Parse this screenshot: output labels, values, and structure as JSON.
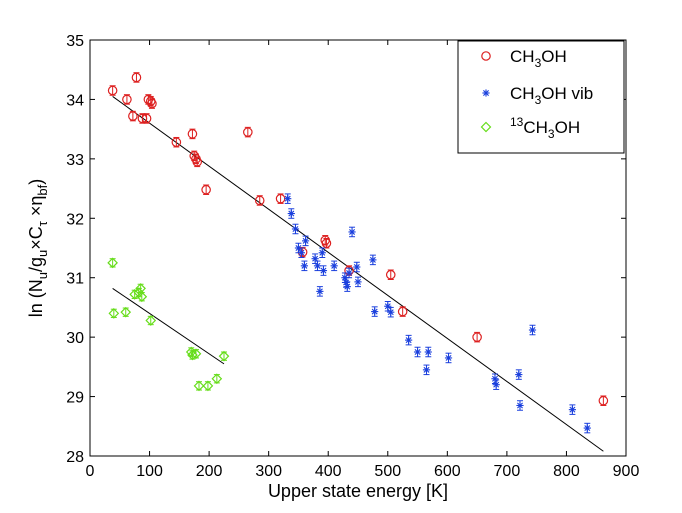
{
  "chart_data": {
    "type": "scatter",
    "title": "",
    "xlabel": "Upper state energy [K]",
    "ylabel": "ln (N_u/g_u×C_τ ×η_bf)",
    "xlim": [
      0,
      900
    ],
    "ylim": [
      28,
      35
    ],
    "xticks": [
      0,
      100,
      200,
      300,
      400,
      500,
      600,
      700,
      800,
      900
    ],
    "yticks": [
      28,
      29,
      30,
      31,
      32,
      33,
      34,
      35
    ],
    "grid": false,
    "legend_position": "top-right",
    "series": [
      {
        "name": "CH3OH",
        "legend": {
          "main": "CH",
          "sub": "3",
          "rest": "OH",
          "sup": ""
        },
        "marker": "circle",
        "color": "#dd2020",
        "error": 0.08,
        "points": [
          [
            38,
            34.15
          ],
          [
            62,
            34.0
          ],
          [
            72,
            33.72
          ],
          [
            78,
            34.37
          ],
          [
            88,
            33.68
          ],
          [
            95,
            33.68
          ],
          [
            98,
            34.0
          ],
          [
            102,
            33.97
          ],
          [
            104,
            33.93
          ],
          [
            145,
            33.28
          ],
          [
            172,
            33.42
          ],
          [
            175,
            33.05
          ],
          [
            178,
            33.0
          ],
          [
            180,
            32.95
          ],
          [
            195,
            32.48
          ],
          [
            265,
            33.45
          ],
          [
            285,
            32.3
          ],
          [
            320,
            32.33
          ],
          [
            357,
            31.43
          ],
          [
            395,
            31.63
          ],
          [
            397,
            31.58
          ],
          [
            435,
            31.12
          ],
          [
            505,
            31.05
          ],
          [
            525,
            30.43
          ],
          [
            650,
            30.0
          ],
          [
            862,
            28.93
          ]
        ]
      },
      {
        "name": "CH3OH vib",
        "legend": {
          "main": "CH",
          "sub": "3",
          "rest": "OH vib",
          "sup": ""
        },
        "marker": "star",
        "color": "#1a3fdd",
        "error": 0.08,
        "points": [
          [
            332,
            32.33
          ],
          [
            338,
            32.08
          ],
          [
            345,
            31.82
          ],
          [
            350,
            31.5
          ],
          [
            355,
            31.42
          ],
          [
            360,
            31.2
          ],
          [
            362,
            31.62
          ],
          [
            378,
            31.32
          ],
          [
            382,
            31.2
          ],
          [
            386,
            30.77
          ],
          [
            390,
            31.42
          ],
          [
            392,
            31.12
          ],
          [
            410,
            31.2
          ],
          [
            428,
            31.0
          ],
          [
            430,
            30.92
          ],
          [
            432,
            30.85
          ],
          [
            435,
            31.08
          ],
          [
            440,
            31.77
          ],
          [
            448,
            31.18
          ],
          [
            450,
            30.93
          ],
          [
            475,
            31.3
          ],
          [
            478,
            30.43
          ],
          [
            500,
            30.52
          ],
          [
            505,
            30.42
          ],
          [
            535,
            29.95
          ],
          [
            550,
            29.75
          ],
          [
            565,
            29.45
          ],
          [
            568,
            29.75
          ],
          [
            602,
            29.65
          ],
          [
            680,
            29.3
          ],
          [
            682,
            29.2
          ],
          [
            720,
            29.37
          ],
          [
            722,
            28.85
          ],
          [
            743,
            30.12
          ],
          [
            810,
            28.78
          ],
          [
            835,
            28.47
          ]
        ]
      },
      {
        "name": "13CH3OH",
        "legend": {
          "main": "CH",
          "sub": "3",
          "rest": "OH",
          "sup": "13"
        },
        "marker": "diamond",
        "color": "#66dd1a",
        "error": 0.07,
        "points": [
          [
            38,
            31.25
          ],
          [
            40,
            30.4
          ],
          [
            60,
            30.42
          ],
          [
            75,
            30.72
          ],
          [
            82,
            30.75
          ],
          [
            85,
            30.82
          ],
          [
            87,
            30.68
          ],
          [
            102,
            30.28
          ],
          [
            170,
            29.75
          ],
          [
            172,
            29.7
          ],
          [
            178,
            29.72
          ],
          [
            183,
            29.18
          ],
          [
            198,
            29.18
          ],
          [
            213,
            29.3
          ],
          [
            225,
            29.68
          ]
        ]
      }
    ],
    "fits": [
      {
        "name": "CH3OH fit",
        "x": [
          38,
          862
        ],
        "y": [
          34.05,
          28.08
        ],
        "color": "#000000"
      },
      {
        "name": "13CH3OH fit",
        "x": [
          38,
          225
        ],
        "y": [
          30.82,
          29.55
        ],
        "color": "#000000"
      }
    ]
  }
}
